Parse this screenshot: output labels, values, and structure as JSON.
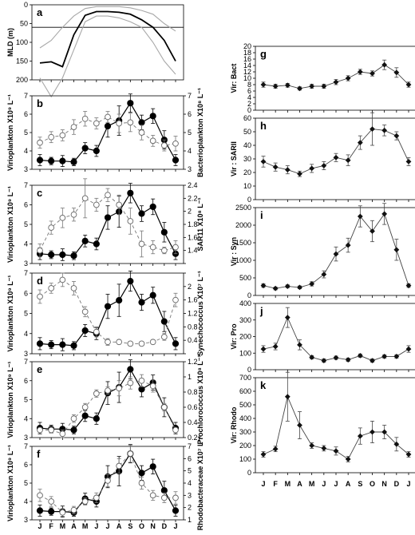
{
  "months": [
    "J",
    "F",
    "M",
    "A",
    "M",
    "J",
    "J",
    "A",
    "S",
    "O",
    "N",
    "D",
    "J"
  ],
  "chart_data": [
    {
      "id": "a",
      "label": "a",
      "type": "line",
      "ylabel": "MLD (m)",
      "ylim": [
        0,
        200
      ],
      "reversed": true,
      "yticks": [
        0,
        50,
        100,
        150,
        200
      ],
      "reference_line": 60,
      "series": [
        {
          "role": "mean",
          "values": [
            155,
            152,
            165,
            80,
            28,
            18,
            18,
            20,
            25,
            40,
            60,
            95,
            150
          ]
        },
        {
          "role": "upper",
          "values": [
            115,
            95,
            60,
            30,
            10,
            5,
            5,
            5,
            8,
            15,
            25,
            50,
            70
          ]
        },
        {
          "role": "lower",
          "values": [
            195,
            245,
            195,
            120,
            45,
            30,
            30,
            35,
            45,
            60,
            100,
            150,
            185
          ]
        }
      ]
    },
    {
      "id": "b",
      "label": "b",
      "type": "line",
      "ylabel": "Virioplankton X10⁹ L⁻¹",
      "ylim": [
        3,
        7
      ],
      "yticks": [
        3,
        4,
        5,
        6,
        7
      ],
      "y2label": "Bacterioplankton X10⁸ L⁻¹",
      "y2lim": [
        3,
        7
      ],
      "y2ticks": [
        3,
        4,
        5,
        6,
        7
      ],
      "series": [
        {
          "role": "virio",
          "axis": "left",
          "values": [
            3.5,
            3.45,
            3.45,
            3.4,
            4.15,
            4.0,
            5.35,
            5.65,
            6.6,
            5.55,
            5.9,
            4.6,
            3.5
          ],
          "err": [
            0.3,
            0.2,
            0.3,
            0.2,
            0.3,
            0.3,
            0.6,
            0.8,
            0.5,
            0.4,
            0.4,
            0.5,
            0.3
          ]
        },
        {
          "role": "host",
          "axis": "right",
          "values": [
            4.45,
            4.75,
            4.85,
            5.3,
            5.75,
            5.5,
            5.85,
            5.5,
            5.55,
            5.0,
            4.55,
            4.3,
            4.4
          ],
          "err": [
            0.3,
            0.3,
            0.3,
            0.4,
            0.4,
            0.3,
            0.3,
            0.5,
            0.5,
            0.4,
            0.3,
            0.3,
            0.4
          ]
        }
      ]
    },
    {
      "id": "c",
      "label": "c",
      "type": "line",
      "ylabel": "Virioplankton X10⁹ L⁻¹",
      "ylim": [
        3,
        7
      ],
      "yticks": [
        3,
        4,
        5,
        6,
        7
      ],
      "y2label": "SAR11 X10⁸ L⁻¹",
      "y2lim": [
        1.2,
        2.4
      ],
      "y2ticks": [
        1.2,
        1.4,
        1.6,
        1.8,
        2.0,
        2.2,
        2.4
      ],
      "y2tick_labels": [
        "",
        "1.4",
        "1.6",
        "1.8",
        "2",
        "2.2",
        "2.4"
      ],
      "series": [
        {
          "role": "virio",
          "axis": "left",
          "values": [
            3.5,
            3.45,
            3.45,
            3.4,
            4.15,
            4.0,
            5.35,
            5.65,
            6.6,
            5.55,
            5.9,
            4.6,
            3.5
          ],
          "err": [
            0.3,
            0.2,
            0.3,
            0.2,
            0.3,
            0.3,
            0.6,
            0.8,
            0.5,
            0.4,
            0.4,
            0.5,
            0.3
          ]
        },
        {
          "role": "host",
          "axis": "right",
          "values": [
            1.4,
            1.75,
            1.9,
            1.95,
            2.2,
            2.1,
            2.25,
            2.1,
            1.85,
            1.5,
            1.45,
            1.4,
            1.45
          ],
          "err": [
            0.1,
            0.1,
            0.15,
            0.1,
            0.3,
            0.1,
            0.1,
            0.15,
            0.2,
            0.2,
            0.1,
            0.05,
            0.1
          ]
        }
      ]
    },
    {
      "id": "d",
      "label": "d",
      "type": "line",
      "ylabel": "Virioplankton X10⁹ L⁻¹",
      "ylim": [
        3,
        7
      ],
      "yticks": [
        3,
        4,
        5,
        6,
        7
      ],
      "y2label": "Synechococcus X10⁷ L⁻¹",
      "y2lim": [
        0,
        2.4
      ],
      "y2ticks": [
        0,
        0.4,
        0.8,
        1.2,
        1.6,
        2.0,
        2.4
      ],
      "y2tick_labels": [
        "",
        "0.4",
        "0.8",
        "1.2",
        "1.6",
        "2",
        ""
      ],
      "series": [
        {
          "role": "virio",
          "axis": "left",
          "values": [
            3.5,
            3.45,
            3.45,
            3.4,
            4.15,
            4.0,
            5.35,
            5.65,
            6.6,
            5.55,
            5.9,
            4.6,
            3.5
          ],
          "err": [
            0.3,
            0.2,
            0.3,
            0.2,
            0.3,
            0.3,
            0.6,
            0.8,
            0.5,
            0.4,
            0.4,
            0.5,
            0.3
          ]
        },
        {
          "role": "host",
          "axis": "right",
          "values": [
            1.7,
            1.95,
            2.2,
            1.95,
            1.25,
            0.65,
            0.35,
            0.35,
            0.3,
            0.3,
            0.35,
            0.5,
            1.6
          ],
          "err": [
            0.2,
            0.15,
            0.2,
            0.2,
            0.15,
            0.15,
            0.1,
            0.05,
            0.05,
            0.05,
            0.05,
            0.1,
            0.2
          ]
        }
      ]
    },
    {
      "id": "e",
      "label": "e",
      "type": "line",
      "ylabel": "Virioplankton X10⁹ L⁻¹",
      "ylim": [
        3,
        7
      ],
      "yticks": [
        3,
        4,
        5,
        6,
        7
      ],
      "y2label": "Prochlorococcus X10⁸ L⁻¹",
      "y2lim": [
        0.2,
        1.2
      ],
      "y2ticks": [
        0.2,
        0.4,
        0.6,
        0.8,
        1.0,
        1.2
      ],
      "y2tick_labels": [
        "0.2",
        "0.4",
        "0.6",
        "0.8",
        "1",
        "1.2"
      ],
      "series": [
        {
          "role": "virio",
          "axis": "left",
          "values": [
            3.5,
            3.45,
            3.45,
            3.4,
            4.15,
            4.0,
            5.35,
            5.65,
            6.6,
            5.55,
            5.9,
            4.6,
            3.5
          ],
          "err": [
            0.3,
            0.2,
            0.3,
            0.2,
            0.3,
            0.3,
            0.6,
            0.8,
            0.5,
            0.4,
            0.4,
            0.5,
            0.3
          ]
        },
        {
          "role": "host",
          "axis": "right",
          "values": [
            0.3,
            0.3,
            0.25,
            0.45,
            0.6,
            0.78,
            0.82,
            0.85,
            0.92,
            0.95,
            0.88,
            0.6,
            0.3
          ],
          "err": [
            0.03,
            0.03,
            0.05,
            0.05,
            0.05,
            0.05,
            0.05,
            0.1,
            0.08,
            0.08,
            0.08,
            0.05,
            0.03
          ]
        }
      ]
    },
    {
      "id": "f",
      "label": "f",
      "type": "line",
      "ylabel": "Virioplankton X10⁹ L⁻¹",
      "ylim": [
        3,
        7
      ],
      "yticks": [
        3,
        4,
        5,
        6,
        7
      ],
      "y2label": "Rhodobacteraceae X10⁷ L⁻¹",
      "y2lim": [
        1,
        7
      ],
      "y2ticks": [
        1,
        2,
        3,
        4,
        5,
        6,
        7
      ],
      "series": [
        {
          "role": "virio",
          "axis": "left",
          "values": [
            3.5,
            3.45,
            3.45,
            3.4,
            4.15,
            4.0,
            5.35,
            5.65,
            6.6,
            5.55,
            5.9,
            4.6,
            3.5
          ],
          "err": [
            0.3,
            0.2,
            0.3,
            0.2,
            0.3,
            0.3,
            0.6,
            0.8,
            0.5,
            0.4,
            0.4,
            0.5,
            0.3
          ]
        },
        {
          "role": "host",
          "axis": "right",
          "values": [
            3.0,
            2.5,
            1.6,
            1.8,
            2.5,
            2.8,
            4.2,
            5.4,
            6.4,
            4.0,
            3.0,
            2.8,
            2.8
          ],
          "err": [
            0.5,
            0.4,
            0.3,
            0.3,
            0.3,
            0.4,
            0.5,
            0.6,
            0.7,
            0.5,
            0.4,
            0.4,
            0.5
          ]
        }
      ]
    },
    {
      "id": "g",
      "label": "g",
      "type": "line",
      "ylabel": "Vir: Bact",
      "ylim": [
        0,
        20
      ],
      "yticks": [
        0,
        2,
        4,
        6,
        8,
        10,
        12,
        14,
        16,
        18,
        20
      ],
      "series": [
        {
          "role": "ratio",
          "values": [
            8.0,
            7.5,
            7.8,
            6.8,
            7.5,
            7.5,
            8.8,
            10.0,
            12.0,
            11.5,
            14.2,
            11.8,
            8.0
          ],
          "err": [
            0.8,
            0.6,
            0.6,
            0.5,
            0.6,
            0.6,
            0.8,
            0.8,
            0.8,
            0.8,
            1.5,
            1.5,
            0.8
          ]
        }
      ]
    },
    {
      "id": "h",
      "label": "h",
      "type": "line",
      "ylabel": "Vir : SARII",
      "ylim": [
        0,
        60
      ],
      "yticks": [
        0,
        10,
        20,
        30,
        40,
        50,
        60
      ],
      "series": [
        {
          "role": "ratio",
          "values": [
            28,
            24,
            22,
            19,
            23,
            25,
            31,
            29,
            42,
            52,
            51,
            47,
            28
          ],
          "err": [
            4,
            3,
            3,
            2,
            3,
            3,
            3,
            4,
            5,
            12,
            4,
            3,
            3
          ]
        }
      ]
    },
    {
      "id": "i",
      "label": "i",
      "type": "line",
      "ylabel": "Vir : Syn",
      "ylim": [
        0,
        2500
      ],
      "yticks": [
        0,
        500,
        1000,
        1500,
        2000,
        2500
      ],
      "series": [
        {
          "role": "ratio",
          "values": [
            280,
            200,
            260,
            230,
            330,
            600,
            1180,
            1430,
            2250,
            1830,
            2320,
            1300,
            280
          ],
          "err": [
            50,
            40,
            40,
            40,
            60,
            100,
            200,
            200,
            300,
            300,
            300,
            300,
            50
          ]
        }
      ]
    },
    {
      "id": "j",
      "label": "j",
      "type": "line",
      "ylabel": "Vir: Pro",
      "ylim": [
        0,
        400
      ],
      "yticks": [
        0,
        100,
        200,
        300,
        400
      ],
      "series": [
        {
          "role": "ratio",
          "values": [
            125,
            140,
            315,
            150,
            75,
            55,
            72,
            60,
            85,
            55,
            80,
            80,
            125
          ],
          "err": [
            20,
            20,
            60,
            30,
            10,
            10,
            10,
            10,
            10,
            10,
            10,
            10,
            20
          ]
        }
      ]
    },
    {
      "id": "k",
      "label": "k",
      "type": "line",
      "ylabel": "Vir: Rhodo",
      "ylim": [
        0,
        700
      ],
      "yticks": [
        0,
        100,
        200,
        300,
        400,
        500,
        600,
        700
      ],
      "series": [
        {
          "role": "ratio",
          "values": [
            135,
            175,
            560,
            350,
            200,
            180,
            160,
            100,
            270,
            300,
            300,
            210,
            135
          ],
          "err": [
            20,
            20,
            180,
            100,
            20,
            20,
            30,
            20,
            60,
            80,
            50,
            50,
            20
          ]
        }
      ]
    }
  ]
}
